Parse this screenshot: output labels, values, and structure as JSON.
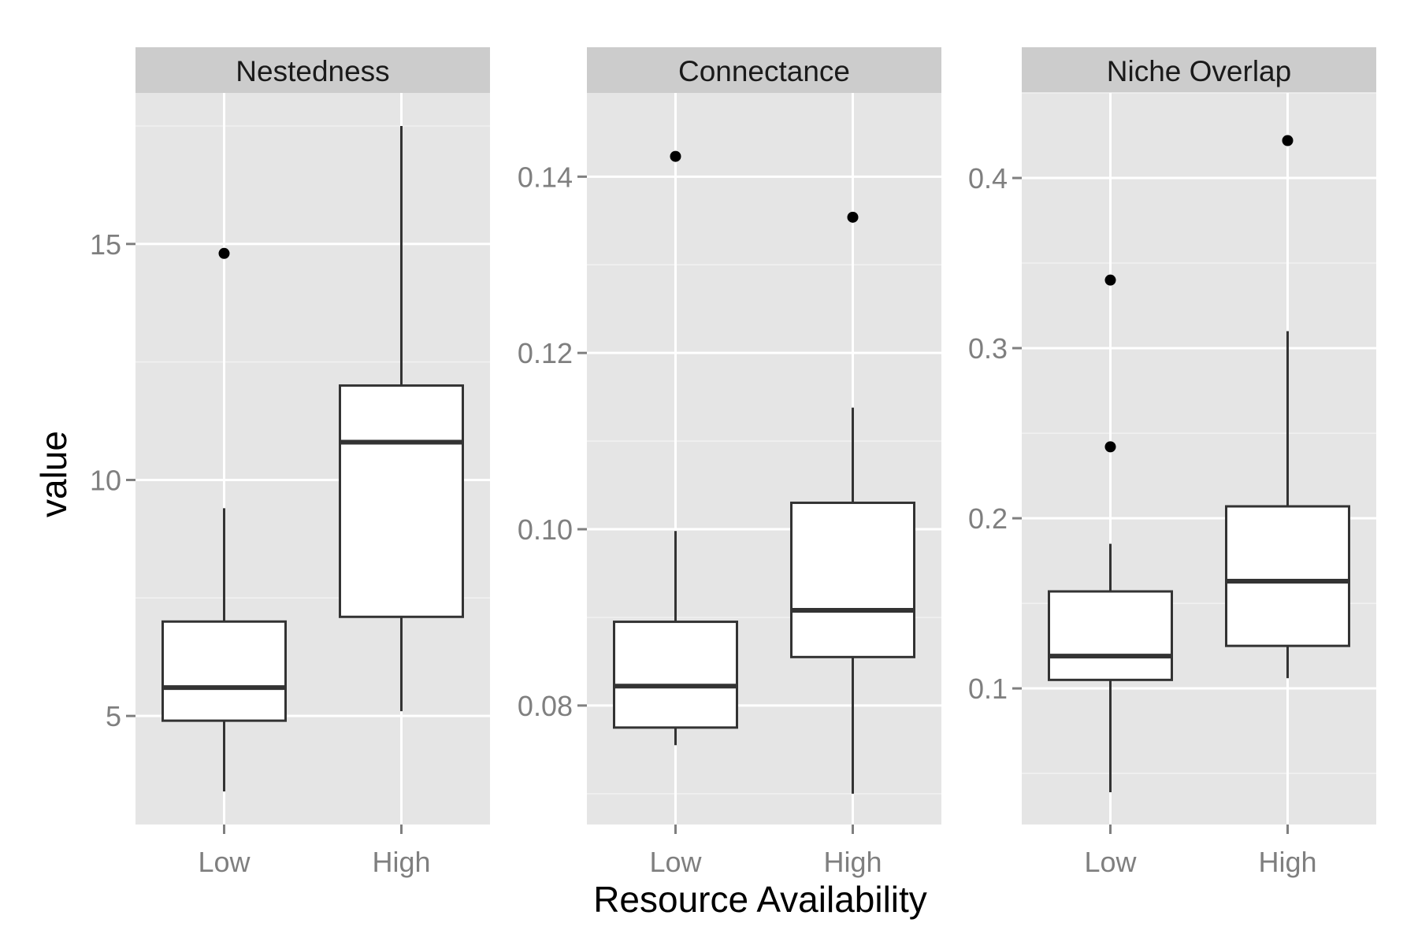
{
  "chart_data": {
    "type": "boxplot",
    "xlabel": "Resource Availability",
    "ylabel": "value",
    "categories": [
      "Low",
      "High"
    ],
    "grid": true,
    "panels": [
      {
        "title": "Nestedness",
        "ylim": [
          2.7,
          18.2
        ],
        "yticks": [
          5,
          10,
          15
        ],
        "ytick_labels": [
          "5",
          "10",
          "15"
        ],
        "boxes": [
          {
            "category": "Low",
            "whisker_low": 3.4,
            "q1": 4.9,
            "median": 5.6,
            "q3": 7.0,
            "whisker_high": 9.4,
            "outliers": [
              14.8
            ]
          },
          {
            "category": "High",
            "whisker_low": 5.1,
            "q1": 7.1,
            "median": 10.8,
            "q3": 12.0,
            "whisker_high": 17.5,
            "outliers": []
          }
        ]
      },
      {
        "title": "Connectance",
        "ylim": [
          0.0665,
          0.1495
        ],
        "yticks": [
          0.08,
          0.1,
          0.12,
          0.14
        ],
        "ytick_labels": [
          "0.08",
          "0.10",
          "0.12",
          "0.14"
        ],
        "boxes": [
          {
            "category": "Low",
            "whisker_low": 0.0755,
            "q1": 0.0775,
            "median": 0.0822,
            "q3": 0.0895,
            "whisker_high": 0.0998,
            "outliers": [
              0.1423
            ]
          },
          {
            "category": "High",
            "whisker_low": 0.07,
            "q1": 0.0855,
            "median": 0.0908,
            "q3": 0.103,
            "whisker_high": 0.1138,
            "outliers": [
              0.1354
            ]
          }
        ]
      },
      {
        "title": "Niche Overlap",
        "ylim": [
          0.02,
          0.45
        ],
        "yticks": [
          0.1,
          0.2,
          0.3,
          0.4
        ],
        "ytick_labels": [
          "0.1",
          "0.2",
          "0.3",
          "0.4"
        ],
        "boxes": [
          {
            "category": "Low",
            "whisker_low": 0.039,
            "q1": 0.105,
            "median": 0.119,
            "q3": 0.157,
            "whisker_high": 0.185,
            "outliers": [
              0.242,
              0.34
            ]
          },
          {
            "category": "High",
            "whisker_low": 0.106,
            "q1": 0.125,
            "median": 0.163,
            "q3": 0.207,
            "whisker_high": 0.31,
            "outliers": [
              0.422
            ]
          }
        ]
      }
    ]
  }
}
